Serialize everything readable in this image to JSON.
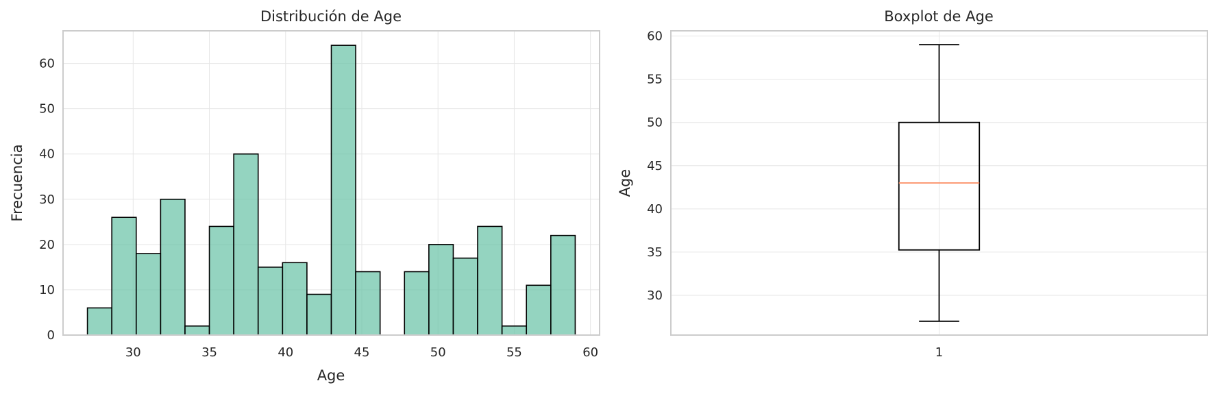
{
  "chart_data": [
    {
      "type": "bar",
      "subtype": "histogram",
      "title": "Distribución de Age",
      "xlabel": "Age",
      "ylabel": "Frecuencia",
      "xlim": [
        25.4,
        60.6
      ],
      "ylim": [
        0,
        67.2
      ],
      "xticks": [
        30,
        35,
        40,
        45,
        50,
        55,
        60
      ],
      "yticks": [
        0,
        10,
        20,
        30,
        40,
        50,
        60
      ],
      "bin_start": 27,
      "bin_width": 1.6,
      "values": [
        6,
        26,
        18,
        30,
        2,
        24,
        40,
        15,
        16,
        9,
        64,
        14,
        0,
        14,
        20,
        17,
        24,
        2,
        11,
        22
      ],
      "bar_color": "#66c2a5",
      "bar_edge_color": "#000000",
      "grid": true
    },
    {
      "type": "box",
      "title": "Boxplot de Age",
      "xlabel": "",
      "ylabel": "Age",
      "ylim": [
        25.4,
        60.6
      ],
      "xticks": [
        "1"
      ],
      "yticks": [
        30,
        35,
        40,
        45,
        50,
        55,
        60
      ],
      "stats": {
        "whisker_low": 27,
        "q1": 35.25,
        "median": 43,
        "q3": 50,
        "whisker_high": 59
      },
      "median_color": "#fc8d62",
      "grid": true
    }
  ]
}
